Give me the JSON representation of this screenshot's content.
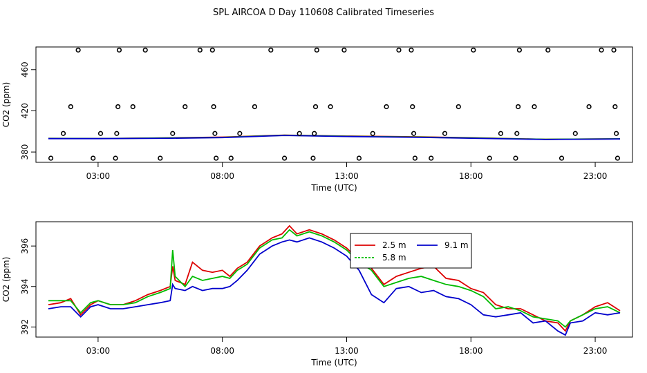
{
  "figure": {
    "title": "SPL AIRCOA D  Day 110608  Calibrated Timeseries"
  },
  "chart_data": [
    {
      "type": "scatter",
      "xlabel": "Time (UTC)",
      "ylabel": "CO2 (ppm)",
      "xlim": [
        0.5,
        24.5
      ],
      "ylim": [
        370,
        482
      ],
      "xticks": [
        3,
        8,
        13,
        18,
        23
      ],
      "xtick_labels": [
        "03:00",
        "08:00",
        "13:00",
        "18:00",
        "23:00"
      ],
      "yticks": [
        380,
        420,
        460
      ],
      "ytick_labels": [
        "380",
        "420",
        "460"
      ],
      "points": [
        [
          1.1,
          374
        ],
        [
          1.6,
          398
        ],
        [
          1.9,
          424
        ],
        [
          2.2,
          479
        ],
        [
          2.8,
          374
        ],
        [
          3.1,
          398
        ],
        [
          3.7,
          374
        ],
        [
          3.75,
          398
        ],
        [
          3.8,
          424
        ],
        [
          3.85,
          479
        ],
        [
          4.4,
          424
        ],
        [
          4.9,
          479
        ],
        [
          5.5,
          374
        ],
        [
          6.0,
          398
        ],
        [
          6.5,
          424
        ],
        [
          7.1,
          479
        ],
        [
          7.6,
          479
        ],
        [
          7.65,
          424
        ],
        [
          7.7,
          398
        ],
        [
          7.75,
          374
        ],
        [
          8.35,
          374
        ],
        [
          8.7,
          398
        ],
        [
          9.3,
          424
        ],
        [
          9.95,
          479
        ],
        [
          10.5,
          374
        ],
        [
          11.1,
          398
        ],
        [
          11.65,
          374
        ],
        [
          11.7,
          398
        ],
        [
          11.75,
          424
        ],
        [
          11.8,
          479
        ],
        [
          12.35,
          424
        ],
        [
          12.9,
          479
        ],
        [
          13.5,
          374
        ],
        [
          14.05,
          398
        ],
        [
          14.6,
          424
        ],
        [
          15.1,
          479
        ],
        [
          15.6,
          479
        ],
        [
          15.65,
          424
        ],
        [
          15.7,
          398
        ],
        [
          15.75,
          374
        ],
        [
          16.4,
          374
        ],
        [
          16.95,
          398
        ],
        [
          17.5,
          424
        ],
        [
          18.1,
          479
        ],
        [
          18.75,
          374
        ],
        [
          19.2,
          398
        ],
        [
          19.8,
          374
        ],
        [
          19.85,
          398
        ],
        [
          19.9,
          424
        ],
        [
          19.95,
          479
        ],
        [
          20.55,
          424
        ],
        [
          21.1,
          479
        ],
        [
          21.65,
          374
        ],
        [
          22.2,
          398
        ],
        [
          22.75,
          424
        ],
        [
          23.25,
          479
        ],
        [
          23.75,
          479
        ],
        [
          23.8,
          424
        ],
        [
          23.85,
          398
        ],
        [
          23.9,
          374
        ]
      ],
      "series": [
        {
          "name": "2.5 m",
          "color": "#dd0000",
          "x": [
            1,
            3,
            6,
            8,
            10.5,
            13,
            16,
            18,
            21,
            24
          ],
          "values": [
            393.3,
            393.1,
            393.8,
            394.5,
            396.4,
            395.5,
            394.7,
            393.9,
            392.3,
            392.8
          ]
        },
        {
          "name": "5.8 m",
          "color": "#00bb00",
          "x": [
            1,
            3,
            6,
            8,
            10.5,
            13,
            16,
            18,
            21,
            24
          ],
          "values": [
            393.2,
            393.1,
            393.7,
            394.2,
            396.3,
            395.3,
            394.5,
            393.7,
            392.3,
            392.8
          ]
        },
        {
          "name": "9.1 m",
          "color": "#0000cc",
          "x": [
            1,
            3,
            6,
            8,
            10.5,
            13,
            16,
            18,
            21,
            24
          ],
          "values": [
            393.0,
            393.0,
            393.4,
            394.0,
            396.1,
            395.1,
            394.2,
            393.4,
            392.2,
            392.7
          ]
        }
      ]
    },
    {
      "type": "line",
      "xlabel": "Time (UTC)",
      "ylabel": "CO2 (ppm)",
      "xlim": [
        0.5,
        24.5
      ],
      "ylim": [
        391.5,
        397.2
      ],
      "xticks": [
        3,
        8,
        13,
        18,
        23
      ],
      "xtick_labels": [
        "03:00",
        "08:00",
        "13:00",
        "18:00",
        "23:00"
      ],
      "yticks": [
        392,
        394,
        396
      ],
      "ytick_labels": [
        "392",
        "394",
        "396"
      ],
      "legend": {
        "placement": "upper-right-center",
        "entries": [
          "2.5 m",
          "9.1 m",
          "5.8 m"
        ]
      },
      "series": [
        {
          "name": "2.5 m",
          "color": "#dd0000",
          "x": [
            1.0,
            1.5,
            1.9,
            2.3,
            2.7,
            3.0,
            3.5,
            4.0,
            4.5,
            5.0,
            5.5,
            5.9,
            6.0,
            6.1,
            6.5,
            6.8,
            7.2,
            7.6,
            8.0,
            8.3,
            8.6,
            9.0,
            9.5,
            10.0,
            10.4,
            10.7,
            11.0,
            11.5,
            12.0,
            12.5,
            13.0,
            13.5,
            14.0,
            14.5,
            15.0,
            15.5,
            16.0,
            16.5,
            17.0,
            17.5,
            18.0,
            18.5,
            19.0,
            19.5,
            20.0,
            20.5,
            21.0,
            21.5,
            21.8,
            22.0,
            22.5,
            23.0,
            23.5,
            24.0
          ],
          "values": [
            393.1,
            393.2,
            393.4,
            392.6,
            393.1,
            393.3,
            393.1,
            393.1,
            393.3,
            393.6,
            393.8,
            394.0,
            395.0,
            394.3,
            394.1,
            395.2,
            394.8,
            394.7,
            394.8,
            394.5,
            394.9,
            395.2,
            396.0,
            396.4,
            396.6,
            397.0,
            396.6,
            396.8,
            396.6,
            396.3,
            395.9,
            395.3,
            394.9,
            394.1,
            394.5,
            394.7,
            394.9,
            395.0,
            394.4,
            394.3,
            393.9,
            393.7,
            393.1,
            392.9,
            392.9,
            392.6,
            392.3,
            392.2,
            391.8,
            392.3,
            392.6,
            393.0,
            393.2,
            392.8
          ]
        },
        {
          "name": "5.8 m",
          "color": "#00bb00",
          "x": [
            1.0,
            1.5,
            1.9,
            2.3,
            2.7,
            3.0,
            3.5,
            4.0,
            4.5,
            5.0,
            5.5,
            5.9,
            6.0,
            6.1,
            6.5,
            6.8,
            7.2,
            7.6,
            8.0,
            8.3,
            8.6,
            9.0,
            9.5,
            10.0,
            10.4,
            10.7,
            11.0,
            11.5,
            12.0,
            12.5,
            13.0,
            13.5,
            14.0,
            14.5,
            15.0,
            15.5,
            16.0,
            16.5,
            17.0,
            17.5,
            18.0,
            18.5,
            19.0,
            19.5,
            20.0,
            20.5,
            21.0,
            21.5,
            21.8,
            22.0,
            22.5,
            23.0,
            23.5,
            24.0
          ],
          "values": [
            393.3,
            393.3,
            393.3,
            392.7,
            393.2,
            393.3,
            393.1,
            393.1,
            393.2,
            393.5,
            393.7,
            393.9,
            395.8,
            394.5,
            394.0,
            394.5,
            394.3,
            394.4,
            394.5,
            394.4,
            394.8,
            395.1,
            395.9,
            396.3,
            396.4,
            396.8,
            396.5,
            396.7,
            396.5,
            396.2,
            395.8,
            395.2,
            394.8,
            394.0,
            394.2,
            394.4,
            394.5,
            394.3,
            394.1,
            394.0,
            393.8,
            393.5,
            392.9,
            393.0,
            392.8,
            392.5,
            392.4,
            392.3,
            392.0,
            392.3,
            392.6,
            392.9,
            393.0,
            392.7
          ]
        },
        {
          "name": "9.1 m",
          "color": "#0000cc",
          "x": [
            1.0,
            1.5,
            1.9,
            2.3,
            2.7,
            3.0,
            3.5,
            4.0,
            4.5,
            5.0,
            5.5,
            5.9,
            6.0,
            6.1,
            6.5,
            6.8,
            7.2,
            7.6,
            8.0,
            8.3,
            8.6,
            9.0,
            9.5,
            10.0,
            10.4,
            10.7,
            11.0,
            11.5,
            12.0,
            12.5,
            13.0,
            13.5,
            14.0,
            14.5,
            15.0,
            15.5,
            16.0,
            16.5,
            17.0,
            17.5,
            18.0,
            18.5,
            19.0,
            19.5,
            20.0,
            20.5,
            21.0,
            21.5,
            21.8,
            22.0,
            22.5,
            23.0,
            23.5,
            24.0
          ],
          "values": [
            392.9,
            393.0,
            393.0,
            392.5,
            393.0,
            393.1,
            392.9,
            392.9,
            393.0,
            393.1,
            393.2,
            393.3,
            394.1,
            393.9,
            393.8,
            394.0,
            393.8,
            393.9,
            393.9,
            394.0,
            394.3,
            394.8,
            395.6,
            396.0,
            396.2,
            396.3,
            396.2,
            396.4,
            396.2,
            395.9,
            395.5,
            394.8,
            393.6,
            393.2,
            393.9,
            394.0,
            393.7,
            393.8,
            393.5,
            393.4,
            393.1,
            392.6,
            392.5,
            392.6,
            392.7,
            392.2,
            392.3,
            391.8,
            391.6,
            392.2,
            392.3,
            392.7,
            392.6,
            392.7
          ]
        }
      ]
    }
  ]
}
